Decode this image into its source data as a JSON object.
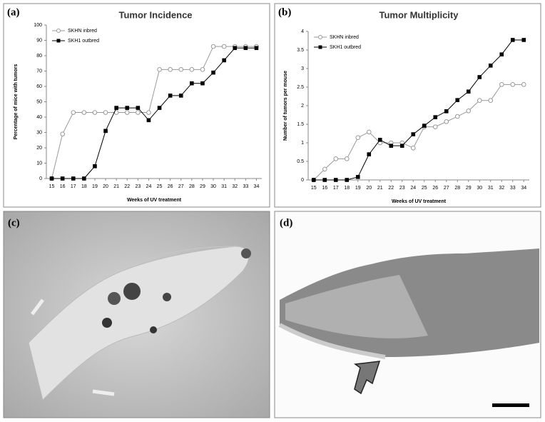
{
  "chart_data": [
    {
      "type": "line",
      "panel_label": "(a)",
      "title": "Tumor Incidence",
      "xlabel": "Weeks of UV treatment",
      "ylabel": "Percentage of mice with tumors",
      "x": [
        15,
        16,
        17,
        18,
        19,
        20,
        21,
        22,
        23,
        24,
        25,
        26,
        27,
        28,
        29,
        30,
        31,
        32,
        33,
        34
      ],
      "xlim": [
        14.5,
        34.5
      ],
      "xticks": [
        15,
        16,
        17,
        18,
        19,
        20,
        21,
        22,
        23,
        24,
        25,
        26,
        27,
        28,
        29,
        30,
        31,
        32,
        33,
        34
      ],
      "ylim": [
        0,
        100
      ],
      "yticks": [
        0,
        10,
        20,
        30,
        40,
        50,
        60,
        70,
        80,
        90,
        100
      ],
      "legend": "upper left",
      "series": [
        {
          "name": "SKHN inbred",
          "color": "#999999",
          "marker": "open-circle",
          "values": [
            0,
            29,
            43,
            43,
            43,
            43,
            43,
            43,
            43,
            43,
            71,
            71,
            71,
            71,
            71,
            86,
            86,
            86,
            86,
            86
          ]
        },
        {
          "name": "SKH1 outbred",
          "color": "#000000",
          "marker": "filled-square",
          "values": [
            0,
            0,
            0,
            0,
            8,
            31,
            46,
            46,
            46,
            38,
            46,
            54,
            54,
            62,
            62,
            69,
            77,
            85,
            85,
            85
          ]
        }
      ]
    },
    {
      "type": "line",
      "panel_label": "(b)",
      "title": "Tumor Multiplicity",
      "xlabel": "Weeks of UV treatment",
      "ylabel": "Number of tumors per mouse",
      "x": [
        15,
        16,
        17,
        18,
        19,
        20,
        21,
        22,
        23,
        24,
        25,
        26,
        27,
        28,
        29,
        30,
        31,
        32,
        33,
        34
      ],
      "xlim": [
        14.5,
        34.5
      ],
      "xticks": [
        15,
        16,
        17,
        18,
        19,
        20,
        21,
        22,
        23,
        24,
        25,
        26,
        27,
        28,
        29,
        30,
        31,
        32,
        33,
        34
      ],
      "ylim": [
        0,
        4
      ],
      "yticks": [
        0,
        0.5,
        1,
        1.5,
        2,
        2.5,
        3,
        3.5,
        4
      ],
      "legend": "upper left",
      "series": [
        {
          "name": "SKHN inbred",
          "color": "#999999",
          "marker": "open-circle",
          "values": [
            0,
            0.29,
            0.57,
            0.57,
            1.14,
            1.29,
            1,
            1,
            1,
            0.86,
            1.43,
            1.43,
            1.57,
            1.71,
            1.86,
            2.14,
            2.14,
            2.57,
            2.57,
            2.57
          ]
        },
        {
          "name": "SKH1 outbred",
          "color": "#000000",
          "marker": "filled-square",
          "values": [
            0,
            0,
            0,
            0,
            0.08,
            0.69,
            1.08,
            0.92,
            0.92,
            1.23,
            1.46,
            1.69,
            1.85,
            2.15,
            2.38,
            2.77,
            3.08,
            3.38,
            3.77,
            3.77
          ]
        }
      ]
    }
  ],
  "images": [
    {
      "panel_label": "(c)"
    },
    {
      "panel_label": "(d)"
    }
  ]
}
